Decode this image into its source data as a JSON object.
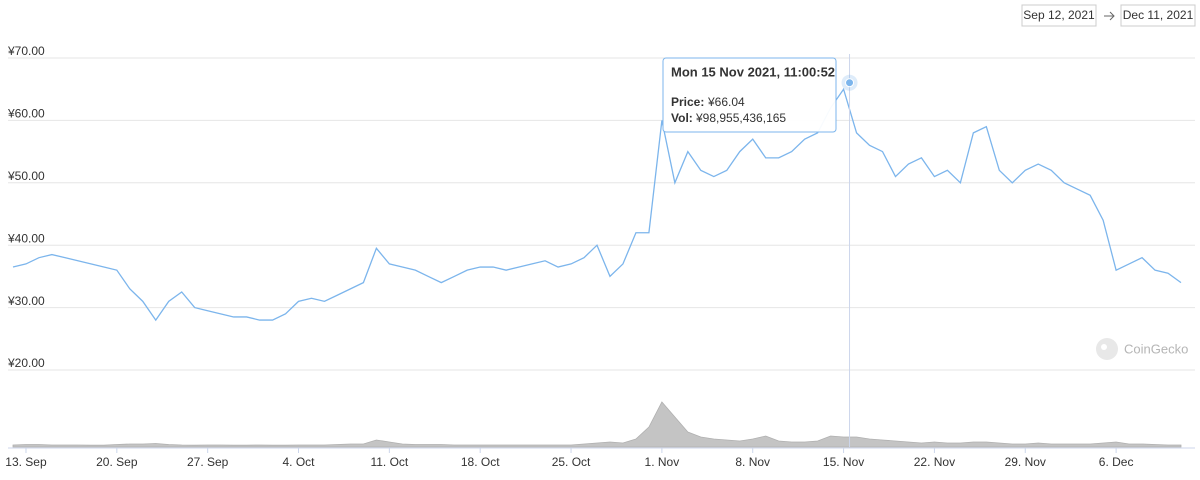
{
  "date_range": {
    "start": "Sep 12, 2021",
    "end": "Dec 11, 2021"
  },
  "watermark": "CoinGecko",
  "chart_data": {
    "type": "line",
    "x": [
      "2021-09-12",
      "2021-09-13",
      "2021-09-14",
      "2021-09-15",
      "2021-09-16",
      "2021-09-17",
      "2021-09-18",
      "2021-09-19",
      "2021-09-20",
      "2021-09-21",
      "2021-09-22",
      "2021-09-23",
      "2021-09-24",
      "2021-09-25",
      "2021-09-26",
      "2021-09-27",
      "2021-09-28",
      "2021-09-29",
      "2021-09-30",
      "2021-10-01",
      "2021-10-02",
      "2021-10-03",
      "2021-10-04",
      "2021-10-05",
      "2021-10-06",
      "2021-10-07",
      "2021-10-08",
      "2021-10-09",
      "2021-10-10",
      "2021-10-11",
      "2021-10-12",
      "2021-10-13",
      "2021-10-14",
      "2021-10-15",
      "2021-10-16",
      "2021-10-17",
      "2021-10-18",
      "2021-10-19",
      "2021-10-20",
      "2021-10-21",
      "2021-10-22",
      "2021-10-23",
      "2021-10-24",
      "2021-10-25",
      "2021-10-26",
      "2021-10-27",
      "2021-10-28",
      "2021-10-29",
      "2021-10-30",
      "2021-10-31",
      "2021-11-01",
      "2021-11-02",
      "2021-11-03",
      "2021-11-04",
      "2021-11-05",
      "2021-11-06",
      "2021-11-07",
      "2021-11-08",
      "2021-11-09",
      "2021-11-10",
      "2021-11-11",
      "2021-11-12",
      "2021-11-13",
      "2021-11-14",
      "2021-11-15",
      "2021-11-16",
      "2021-11-17",
      "2021-11-18",
      "2021-11-19",
      "2021-11-20",
      "2021-11-21",
      "2021-11-22",
      "2021-11-23",
      "2021-11-24",
      "2021-11-25",
      "2021-11-26",
      "2021-11-27",
      "2021-11-28",
      "2021-11-29",
      "2021-11-30",
      "2021-12-01",
      "2021-12-02",
      "2021-12-03",
      "2021-12-04",
      "2021-12-05",
      "2021-12-06",
      "2021-12-07",
      "2021-12-08",
      "2021-12-09",
      "2021-12-10",
      "2021-12-11"
    ],
    "series": [
      {
        "name": "Price",
        "color": "#7cb5ec",
        "values": [
          36.5,
          37,
          38,
          38.5,
          38,
          37.5,
          37,
          36.5,
          36,
          33,
          31,
          28,
          31,
          32.5,
          30,
          29.5,
          29,
          28.5,
          28.5,
          28,
          28,
          29,
          31,
          31.5,
          31,
          32,
          33,
          34,
          39.5,
          37,
          36.5,
          36,
          35,
          34,
          35,
          36,
          36.5,
          36.5,
          36,
          36.5,
          37,
          37.5,
          36.5,
          37,
          38,
          40,
          35,
          37,
          42,
          42,
          60,
          50,
          55,
          52,
          51,
          52,
          55,
          57,
          54,
          54,
          55,
          57,
          58,
          62,
          65,
          58,
          56,
          55,
          51,
          53,
          54,
          51,
          52,
          50,
          58,
          59,
          52,
          50,
          52,
          53,
          52,
          50,
          49,
          48,
          44,
          36,
          37,
          38,
          36,
          35.5,
          34
        ]
      },
      {
        "name": "Volume",
        "color": "#c4c4c4",
        "axis": "y2",
        "values": [
          20000000000.0,
          25000000000.0,
          25000000000.0,
          20000000000.0,
          20000000000.0,
          20000000000.0,
          18000000000.0,
          18000000000.0,
          25000000000.0,
          30000000000.0,
          30000000000.0,
          35000000000.0,
          25000000000.0,
          20000000000.0,
          18000000000.0,
          20000000000.0,
          20000000000.0,
          18000000000.0,
          18000000000.0,
          20000000000.0,
          18000000000.0,
          18000000000.0,
          20000000000.0,
          20000000000.0,
          20000000000.0,
          25000000000.0,
          30000000000.0,
          30000000000.0,
          70000000000.0,
          50000000000.0,
          30000000000.0,
          25000000000.0,
          25000000000.0,
          25000000000.0,
          20000000000.0,
          20000000000.0,
          20000000000.0,
          20000000000.0,
          20000000000.0,
          20000000000.0,
          20000000000.0,
          20000000000.0,
          20000000000.0,
          20000000000.0,
          30000000000.0,
          40000000000.0,
          50000000000.0,
          40000000000.0,
          80000000000.0,
          200000000000.0,
          450000000000.0,
          300000000000.0,
          150000000000.0,
          100000000000.0,
          80000000000.0,
          70000000000.0,
          60000000000.0,
          80000000000.0,
          110000000000.0,
          60000000000.0,
          50000000000.0,
          50000000000.0,
          60000000000.0,
          110000000000.0,
          100000000000.0,
          100000000000.0,
          80000000000.0,
          70000000000.0,
          60000000000.0,
          50000000000.0,
          40000000000.0,
          50000000000.0,
          40000000000.0,
          40000000000.0,
          50000000000.0,
          50000000000.0,
          40000000000.0,
          30000000000.0,
          30000000000.0,
          40000000000.0,
          30000000000.0,
          30000000000.0,
          30000000000.0,
          30000000000.0,
          40000000000.0,
          50000000000.0,
          30000000000.0,
          30000000000.0,
          25000000000.0,
          20000000000.0,
          20000000000.0
        ]
      }
    ],
    "xlim": [
      "2021-09-12",
      "2021-12-11"
    ],
    "xticks": [
      {
        "value": "2021-09-13",
        "label": "13. Sep"
      },
      {
        "value": "2021-09-20",
        "label": "20. Sep"
      },
      {
        "value": "2021-09-27",
        "label": "27. Sep"
      },
      {
        "value": "2021-10-04",
        "label": "4. Oct"
      },
      {
        "value": "2021-10-11",
        "label": "11. Oct"
      },
      {
        "value": "2021-10-18",
        "label": "18. Oct"
      },
      {
        "value": "2021-10-25",
        "label": "25. Oct"
      },
      {
        "value": "2021-11-01",
        "label": "1. Nov"
      },
      {
        "value": "2021-11-08",
        "label": "8. Nov"
      },
      {
        "value": "2021-11-15",
        "label": "15. Nov"
      },
      {
        "value": "2021-11-22",
        "label": "22. Nov"
      },
      {
        "value": "2021-11-29",
        "label": "29. Nov"
      },
      {
        "value": "2021-12-06",
        "label": "6. Dec"
      }
    ],
    "ylim": [
      20,
      70
    ],
    "yticks": [
      {
        "value": 20,
        "label": "¥20.00"
      },
      {
        "value": 30,
        "label": "¥30.00"
      },
      {
        "value": 40,
        "label": "¥40.00"
      },
      {
        "value": 50,
        "label": "¥50.00"
      },
      {
        "value": 60,
        "label": "¥60.00"
      },
      {
        "value": 70,
        "label": "¥70.00"
      }
    ],
    "y2lim": [
      0,
      600000000000.0
    ],
    "grid": true,
    "tooltip": {
      "x": "2021-11-15T11:00:52",
      "date": "Mon 15 Nov 2021, 11:00:52",
      "price_label": "Price:",
      "price": {
        "value": 66.04,
        "label": "¥66.04"
      },
      "volume_label": "Vol:",
      "volume": {
        "value": 98955436165,
        "label": "¥98,955,436,165"
      }
    }
  }
}
